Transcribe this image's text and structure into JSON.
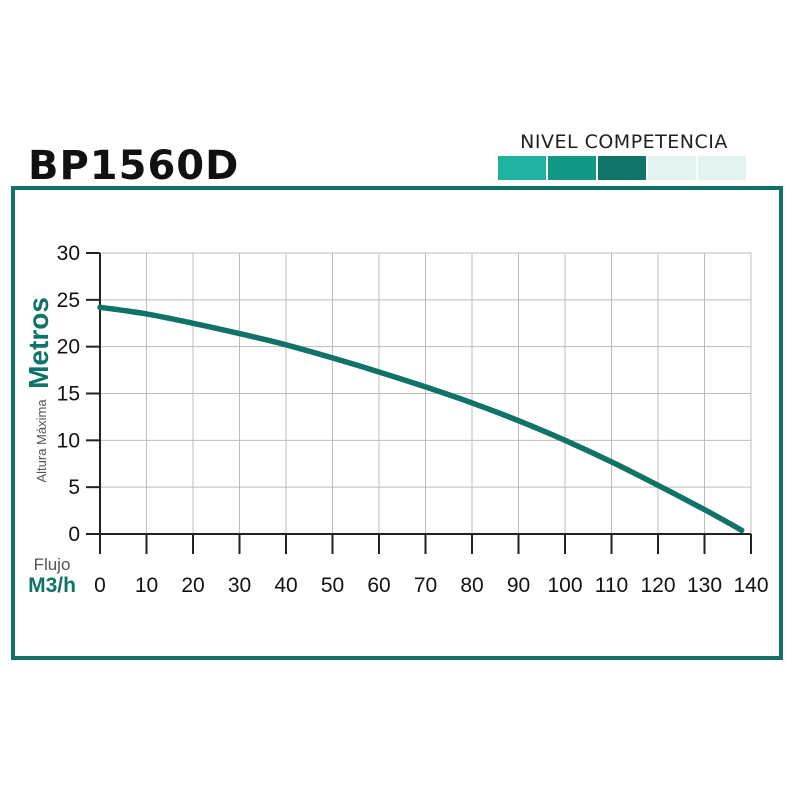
{
  "header": {
    "model": "BP1560D",
    "level_label": "NIVEL COMPETENCIA",
    "level": {
      "filled": 3,
      "total": 5,
      "colors": [
        "#1fb3a0",
        "#139885",
        "#0e7568",
        "#e3f3f1",
        "#e3f3f1"
      ]
    }
  },
  "chart_data": {
    "type": "line",
    "title": "BP1560D",
    "ylabel_main": "Metros",
    "ylabel_sub": "Altura Máxima",
    "xlabel_main": "M3/h",
    "xlabel_sub": "Flujo",
    "xlim": [
      0,
      140
    ],
    "ylim": [
      0,
      30
    ],
    "x_ticks": [
      0,
      10,
      20,
      30,
      40,
      50,
      60,
      70,
      80,
      90,
      100,
      110,
      120,
      130,
      140
    ],
    "y_ticks": [
      0,
      5,
      10,
      15,
      20,
      25,
      30
    ],
    "grid": true,
    "line_color": "#0f7368",
    "series": [
      {
        "x": [
          0,
          10,
          20,
          30,
          40,
          50,
          60,
          70,
          80,
          90,
          100,
          110,
          120,
          130,
          138
        ],
        "y": [
          24.2,
          23.5,
          22.5,
          21.4,
          20.2,
          18.8,
          17.3,
          15.7,
          14.0,
          12.1,
          10.0,
          7.7,
          5.2,
          2.6,
          0.4
        ]
      }
    ]
  }
}
